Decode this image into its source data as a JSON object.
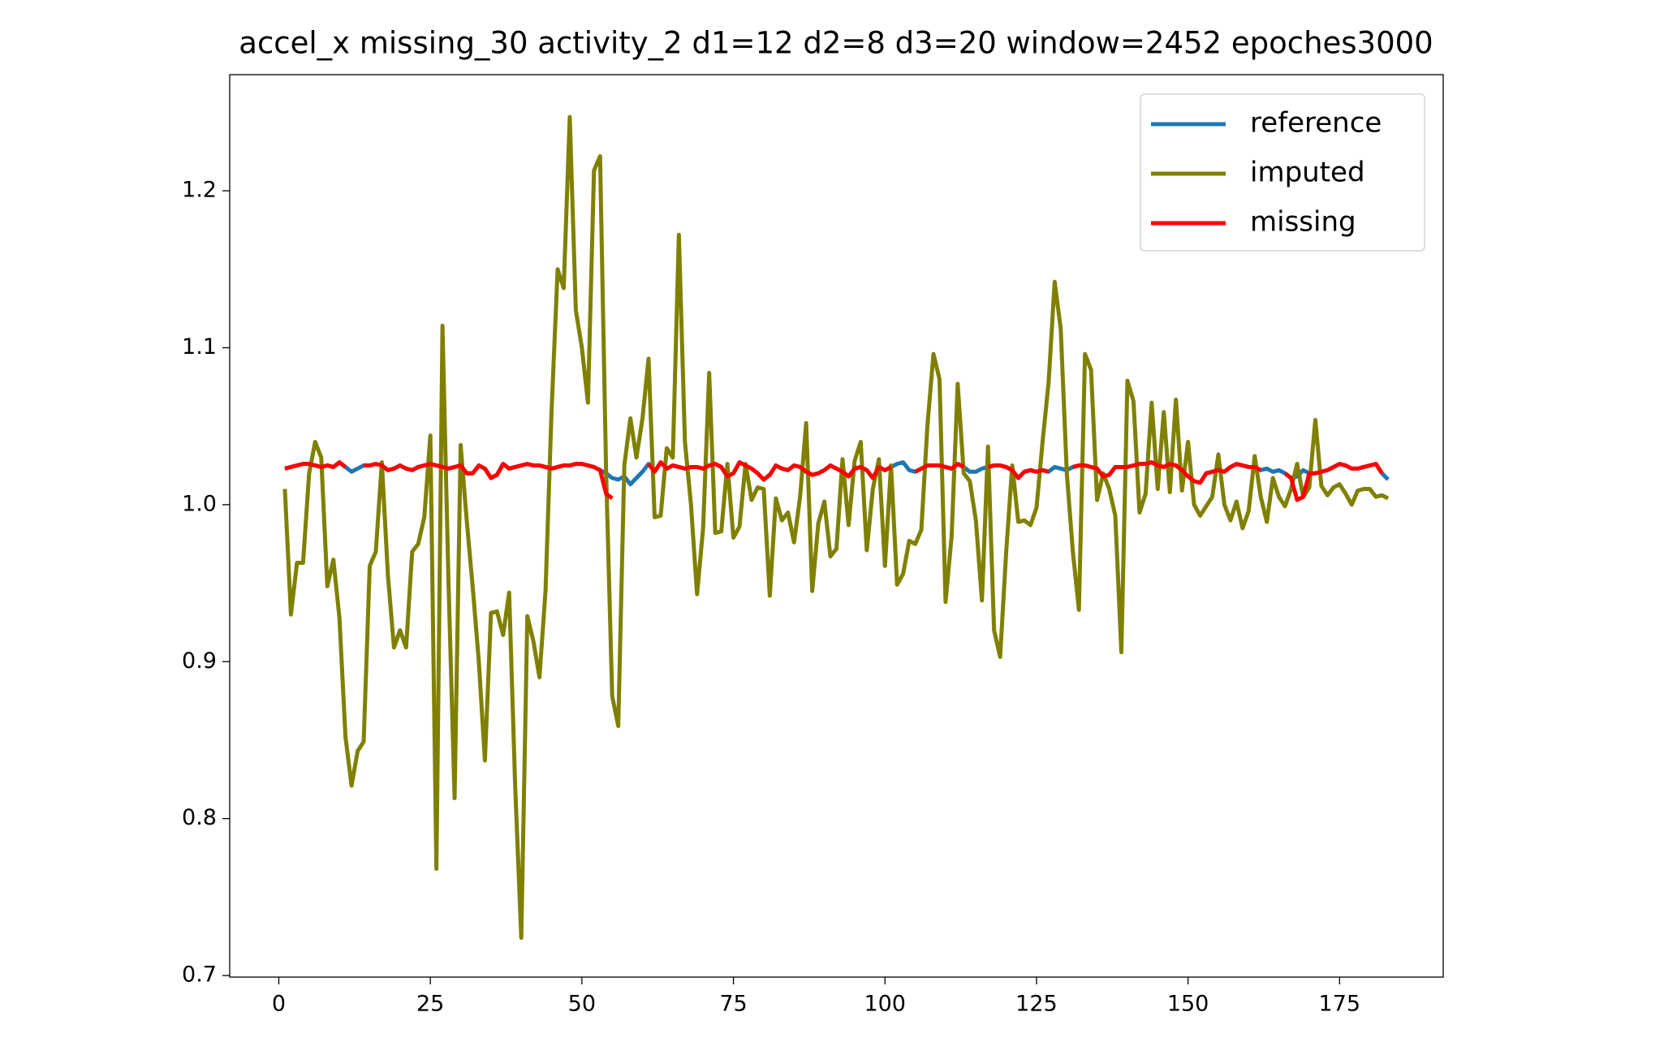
{
  "chart_data": {
    "type": "line",
    "title": "accel_x missing_30 activity_2 d1=12 d2=8 d3=20 window=2452 epoches3000",
    "x": [
      1,
      2,
      3,
      4,
      5,
      6,
      7,
      8,
      9,
      10,
      11,
      12,
      13,
      14,
      15,
      16,
      17,
      18,
      19,
      20,
      21,
      22,
      23,
      24,
      25,
      26,
      27,
      28,
      29,
      30,
      31,
      32,
      33,
      34,
      35,
      36,
      37,
      38,
      39,
      40,
      41,
      42,
      43,
      44,
      45,
      46,
      47,
      48,
      49,
      50,
      51,
      52,
      53,
      54,
      55,
      56,
      57,
      58,
      59,
      60,
      61,
      62,
      63,
      64,
      65,
      66,
      67,
      68,
      69,
      70,
      71,
      72,
      73,
      74,
      75,
      76,
      77,
      78,
      79,
      80,
      81,
      82,
      83,
      84,
      85,
      86,
      87,
      88,
      89,
      90,
      91,
      92,
      93,
      94,
      95,
      96,
      97,
      98,
      99,
      100,
      101,
      102,
      103,
      104,
      105,
      106,
      107,
      108,
      109,
      110,
      111,
      112,
      113,
      114,
      115,
      116,
      117,
      118,
      119,
      120,
      121,
      122,
      123,
      124,
      125,
      126,
      127,
      128,
      129,
      130,
      131,
      132,
      133,
      134,
      135,
      136,
      137,
      138,
      139,
      140,
      141,
      142,
      143,
      144,
      145,
      146,
      147,
      148,
      149,
      150,
      151,
      152,
      153,
      154,
      155,
      156,
      157,
      158,
      159,
      160,
      161,
      162,
      163,
      164,
      165,
      166,
      167,
      168,
      169,
      170,
      171,
      172,
      173,
      174,
      175,
      176,
      177,
      178,
      179,
      180,
      181,
      182,
      183
    ],
    "series": [
      {
        "name": "reference",
        "color": "#1f77b4",
        "values": [
          1.023,
          1.024,
          1.025,
          1.026,
          1.026,
          1.025,
          1.024,
          1.025,
          1.024,
          1.027,
          1.024,
          1.021,
          1.023,
          1.025,
          1.025,
          1.026,
          1.025,
          1.022,
          1.023,
          1.025,
          1.023,
          1.022,
          1.024,
          1.025,
          1.026,
          1.025,
          1.024,
          1.023,
          1.024,
          1.025,
          1.02,
          1.02,
          1.025,
          1.023,
          1.017,
          1.019,
          1.026,
          1.023,
          1.024,
          1.025,
          1.026,
          1.025,
          1.025,
          1.024,
          1.023,
          1.024,
          1.025,
          1.025,
          1.026,
          1.026,
          1.025,
          1.024,
          1.022,
          1.02,
          1.017,
          1.016,
          1.018,
          1.013,
          1.017,
          1.021,
          1.026,
          1.021,
          1.027,
          1.023,
          1.025,
          1.024,
          1.023,
          1.024,
          1.024,
          1.023,
          1.025,
          1.026,
          1.024,
          1.018,
          1.02,
          1.027,
          1.025,
          1.023,
          1.02,
          1.016,
          1.019,
          1.025,
          1.023,
          1.022,
          1.025,
          1.024,
          1.021,
          1.019,
          1.02,
          1.022,
          1.025,
          1.023,
          1.021,
          1.018,
          1.023,
          1.024,
          1.022,
          1.017,
          1.024,
          1.022,
          1.024,
          1.026,
          1.027,
          1.022,
          1.021,
          1.023,
          1.025,
          1.025,
          1.025,
          1.024,
          1.023,
          1.026,
          1.024,
          1.021,
          1.021,
          1.023,
          1.024,
          1.025,
          1.025,
          1.024,
          1.022,
          1.017,
          1.021,
          1.022,
          1.021,
          1.022,
          1.021,
          1.024,
          1.023,
          1.022,
          1.024,
          1.025,
          1.025,
          1.024,
          1.023,
          1.018,
          1.019,
          1.024,
          1.024,
          1.024,
          1.025,
          1.026,
          1.026,
          1.027,
          1.025,
          1.024,
          1.026,
          1.025,
          1.022,
          1.018,
          1.015,
          1.014,
          1.02,
          1.021,
          1.022,
          1.021,
          1.024,
          1.026,
          1.025,
          1.024,
          1.024,
          1.022,
          1.023,
          1.021,
          1.022,
          1.02,
          1.017,
          1.018,
          1.022,
          1.02,
          1.02,
          1.021,
          1.022,
          1.024,
          1.026,
          1.025,
          1.023,
          1.023,
          1.024,
          1.025,
          1.026,
          1.02,
          1.016
        ]
      },
      {
        "name": "imputed",
        "color": "#808000",
        "values": [
          1.01,
          0.93,
          0.963,
          0.963,
          1.02,
          1.04,
          1.03,
          0.948,
          0.965,
          0.928,
          0.852,
          0.821,
          0.843,
          0.849,
          0.961,
          0.97,
          1.027,
          0.955,
          0.909,
          0.92,
          0.909,
          0.97,
          0.975,
          0.992,
          1.044,
          0.768,
          1.114,
          0.95,
          0.813,
          1.038,
          0.99,
          0.947,
          0.9,
          0.837,
          0.931,
          0.932,
          0.917,
          0.944,
          0.82,
          0.724,
          0.929,
          0.913,
          0.89,
          0.945,
          1.06,
          1.15,
          1.138,
          1.247,
          1.124,
          1.1,
          1.065,
          1.213,
          1.222,
          1.02,
          0.878,
          0.859,
          1.025,
          1.055,
          1.03,
          1.055,
          1.093,
          0.992,
          0.993,
          1.036,
          1.03,
          1.172,
          1.04,
          1.0,
          0.943,
          0.985,
          1.084,
          0.982,
          0.983,
          1.026,
          0.979,
          0.986,
          1.026,
          1.003,
          1.011,
          1.01,
          0.942,
          1.004,
          0.99,
          0.995,
          0.976,
          1.005,
          1.052,
          0.945,
          0.988,
          1.002,
          0.967,
          0.972,
          1.029,
          0.987,
          1.028,
          1.04,
          0.971,
          1.01,
          1.029,
          0.961,
          1.025,
          0.949,
          0.956,
          0.977,
          0.975,
          0.984,
          1.05,
          1.096,
          1.08,
          0.938,
          0.98,
          1.077,
          1.02,
          1.015,
          0.99,
          0.939,
          1.037,
          0.92,
          0.903,
          0.97,
          1.025,
          0.989,
          0.99,
          0.987,
          0.998,
          1.04,
          1.078,
          1.142,
          1.112,
          1.02,
          0.97,
          0.933,
          1.096,
          1.086,
          1.003,
          1.02,
          1.01,
          0.993,
          0.906,
          1.079,
          1.066,
          0.995,
          1.007,
          1.065,
          1.01,
          1.059,
          1.008,
          1.067,
          1.009,
          1.04,
          1.0,
          0.993,
          0.999,
          1.005,
          1.032,
          1.0,
          0.99,
          1.002,
          0.985,
          0.996,
          1.031,
          1.005,
          0.989,
          1.017,
          1.005,
          0.999,
          1.01,
          1.026,
          1.005,
          1.011,
          1.054,
          1.012,
          1.006,
          1.011,
          1.013,
          1.007,
          1.0,
          1.009,
          1.01,
          1.01,
          1.005,
          1.006,
          1.004
        ]
      },
      {
        "name": "missing",
        "color": "#ff0000",
        "values": [
          1.023,
          1.024,
          1.025,
          1.026,
          1.026,
          1.025,
          1.024,
          1.025,
          1.024,
          1.027,
          1.024,
          null,
          null,
          1.025,
          1.025,
          1.026,
          1.025,
          1.022,
          1.023,
          1.025,
          1.023,
          1.022,
          1.024,
          1.025,
          1.026,
          1.025,
          1.024,
          1.023,
          1.024,
          1.025,
          1.02,
          1.02,
          1.025,
          1.023,
          1.017,
          1.019,
          1.026,
          1.023,
          1.024,
          1.025,
          1.026,
          1.025,
          1.025,
          1.024,
          1.023,
          1.024,
          1.025,
          1.025,
          1.026,
          1.026,
          1.025,
          1.024,
          1.022,
          1.007,
          1.004,
          null,
          null,
          null,
          null,
          null,
          1.026,
          1.021,
          1.027,
          1.023,
          1.025,
          1.024,
          1.023,
          1.024,
          1.024,
          1.023,
          1.025,
          1.026,
          1.024,
          1.018,
          1.02,
          1.027,
          1.025,
          1.023,
          1.02,
          1.016,
          1.019,
          1.025,
          1.023,
          1.022,
          1.025,
          1.024,
          1.021,
          1.019,
          1.02,
          1.022,
          1.025,
          1.023,
          1.021,
          1.018,
          1.023,
          1.024,
          1.022,
          1.017,
          1.024,
          1.022,
          1.024,
          null,
          null,
          null,
          1.021,
          1.023,
          1.025,
          1.025,
          1.025,
          1.024,
          1.023,
          1.026,
          1.024,
          null,
          null,
          null,
          1.024,
          1.025,
          1.025,
          1.024,
          1.022,
          1.017,
          1.021,
          1.022,
          1.021,
          1.022,
          1.021,
          null,
          null,
          null,
          1.024,
          1.025,
          1.025,
          1.024,
          1.023,
          1.018,
          1.019,
          1.024,
          1.024,
          1.024,
          1.025,
          1.026,
          1.026,
          1.027,
          1.025,
          1.024,
          1.026,
          1.025,
          1.022,
          1.018,
          1.015,
          1.014,
          1.02,
          1.021,
          1.022,
          1.021,
          1.024,
          1.026,
          1.025,
          1.024,
          1.024,
          1.022,
          null,
          null,
          null,
          1.02,
          1.017,
          1.003,
          1.005,
          1.02,
          1.02,
          1.021,
          1.022,
          1.024,
          1.026,
          1.025,
          1.023,
          1.023,
          1.024,
          1.025,
          1.026,
          1.02,
          null
        ]
      }
    ],
    "xlim": [
      -8.1,
      192.1
    ],
    "ylim": [
      0.699,
      1.274
    ],
    "xticks": [
      0,
      25,
      50,
      75,
      100,
      125,
      150,
      175
    ],
    "yticks": [
      0.7,
      0.8,
      0.9,
      {
        "value": 1,
        "label": "1.0"
      },
      1.1,
      1.2
    ],
    "legend": "upper right"
  }
}
